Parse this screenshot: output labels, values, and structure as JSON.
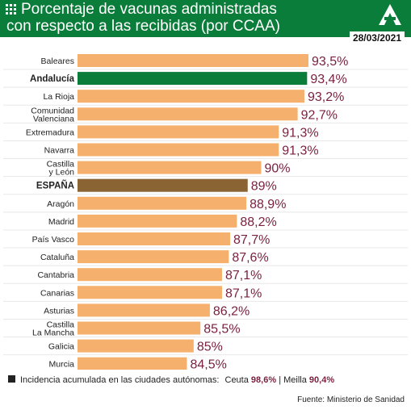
{
  "header": {
    "title_line1": "Porcentaje de vacunas administradas",
    "title_line2": "con respecto a las recibidas (por CCAA)",
    "date": "28/03/2021",
    "background_color": "#0b7d3a",
    "icons": [
      "grid-icon",
      "andalucia-logo"
    ]
  },
  "chart_data": {
    "type": "bar",
    "orientation": "horizontal",
    "title": "Porcentaje de vacunas administradas con respecto a las recibidas (por CCAA)",
    "categories": [
      [
        "Baleares"
      ],
      [
        "Andalucía"
      ],
      [
        "La Rioja"
      ],
      [
        "Comunidad",
        "Valenciana"
      ],
      [
        "Extremadura"
      ],
      [
        "Navarra"
      ],
      [
        "Castilla",
        "y León"
      ],
      [
        "ESPAÑA"
      ],
      [
        "Aragón"
      ],
      [
        "Madrid"
      ],
      [
        "País Vasco"
      ],
      [
        "Cataluña"
      ],
      [
        "Cantabria"
      ],
      [
        "Canarias"
      ],
      [
        "Asturias"
      ],
      [
        "Castilla",
        "La Mancha"
      ],
      [
        "Galicia"
      ],
      [
        "Murcia"
      ]
    ],
    "values": [
      93.5,
      93.4,
      93.2,
      92.7,
      91.3,
      91.3,
      90,
      89,
      88.9,
      88.2,
      87.7,
      87.6,
      87.1,
      87.1,
      86.2,
      85.5,
      85,
      84.5
    ],
    "value_labels": [
      "93,5%",
      "93,4%",
      "93,2%",
      "92,7%",
      "91,3%",
      "91,3%",
      "90%",
      "89%",
      "88,9%",
      "88,2%",
      "87,7%",
      "87,6%",
      "87,1%",
      "87,1%",
      "86,2%",
      "85,5%",
      "85%",
      "84,5%"
    ],
    "bold_categories": [
      "Andalucía",
      "ESPAÑA"
    ],
    "colors": {
      "default": "#f5b06e",
      "Andalucía": "#0b7d3a",
      "ESPAÑA": "#8a6432",
      "value_text": "#7a1f3d"
    },
    "xlim": [
      0,
      100
    ],
    "grid": false,
    "legend": "none"
  },
  "footer": {
    "legend_label": "Incidencia acumulada en las ciudades autónomas:",
    "ceuta_name": "Ceuta",
    "ceuta_value": "98,6%",
    "separator": "|",
    "melilla_name": "Meilla",
    "melilla_value": "90,4%",
    "source": "Fuente: Ministerio de Sanidad"
  }
}
